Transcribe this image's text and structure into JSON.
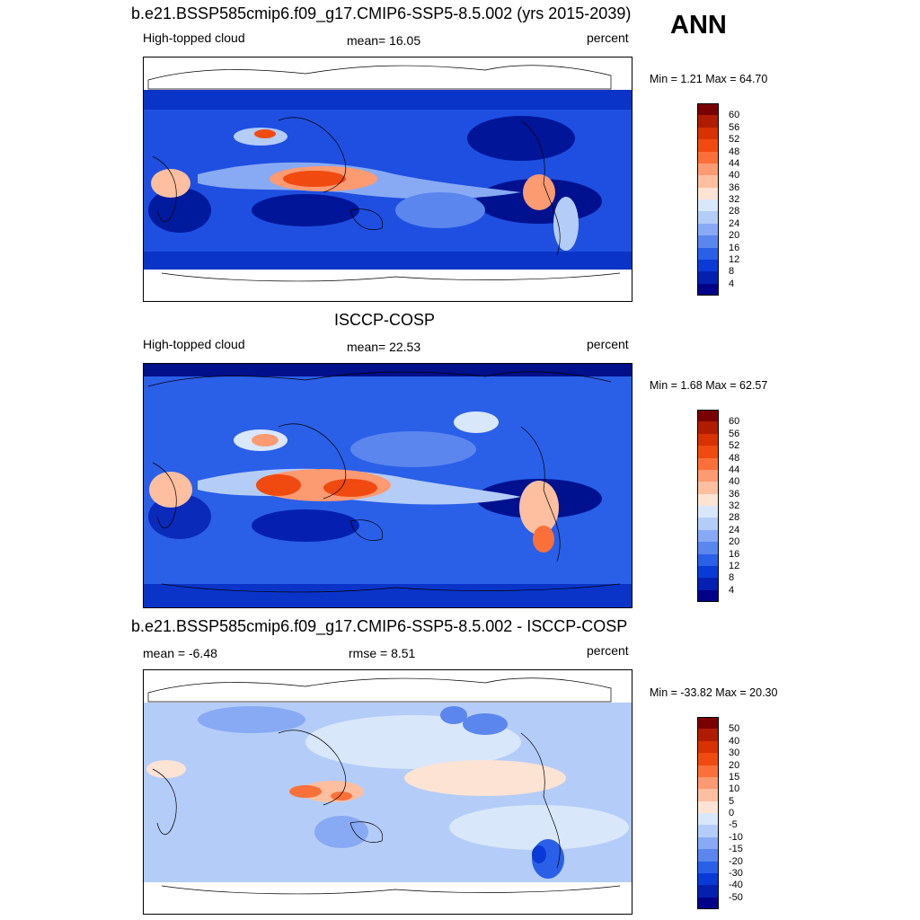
{
  "season": "ANN",
  "panels": [
    {
      "title": "b.e21.BSSP585cmip6.f09_g17.CMIP6-SSP5-8.5.002 (yrs 2015-2039)",
      "left_label": "High-topped cloud",
      "center_label": "mean=  16.05",
      "right_label": "percent",
      "minmax": "Min =   1.21 Max =  64.70",
      "colorbar": {
        "labels": [
          "60",
          "56",
          "52",
          "48",
          "44",
          "40",
          "36",
          "32",
          "28",
          "24",
          "20",
          "16",
          "12",
          "8",
          "4"
        ],
        "colors": [
          "#7a0000",
          "#b01c00",
          "#d83200",
          "#f04a10",
          "#fb7039",
          "#fc9a72",
          "#fdbf9f",
          "#fde3d3",
          "#d9e7fb",
          "#b4ccf8",
          "#88aaf4",
          "#5a86ee",
          "#2a5fe8",
          "#0a3ad6",
          "#0520b0",
          "#000088"
        ]
      }
    },
    {
      "title": "ISCCP-COSP",
      "left_label": "High-topped cloud",
      "center_label": "mean=  22.53",
      "right_label": "percent",
      "minmax": "Min =   1.68 Max =  62.57",
      "colorbar": {
        "labels": [
          "60",
          "56",
          "52",
          "48",
          "44",
          "40",
          "36",
          "32",
          "28",
          "24",
          "20",
          "16",
          "12",
          "8",
          "4"
        ],
        "colors": [
          "#7a0000",
          "#b01c00",
          "#d83200",
          "#f04a10",
          "#fb7039",
          "#fc9a72",
          "#fdbf9f",
          "#fde3d3",
          "#d9e7fb",
          "#b4ccf8",
          "#88aaf4",
          "#5a86ee",
          "#2a5fe8",
          "#0a3ad6",
          "#0520b0",
          "#000088"
        ]
      }
    },
    {
      "title": "b.e21.BSSP585cmip6.f09_g17.CMIP6-SSP5-8.5.002 - ISCCP-COSP",
      "left_label": "mean =  -6.48",
      "center_label": "rmse =   8.51",
      "right_label": "percent",
      "minmax": "Min = -33.82 Max =  20.30",
      "colorbar": {
        "labels": [
          "50",
          "40",
          "30",
          "20",
          "15",
          "10",
          "5",
          "0",
          "-5",
          "-10",
          "-15",
          "-20",
          "-30",
          "-40",
          "-50"
        ],
        "colors": [
          "#7a0000",
          "#b01c00",
          "#d83200",
          "#f04a10",
          "#fb7039",
          "#fc9a72",
          "#fdbf9f",
          "#fde3d3",
          "#d9e7fb",
          "#b4ccf8",
          "#88aaf4",
          "#5a86ee",
          "#2a5fe8",
          "#0a3ad6",
          "#0520b0",
          "#000088"
        ]
      }
    }
  ]
}
